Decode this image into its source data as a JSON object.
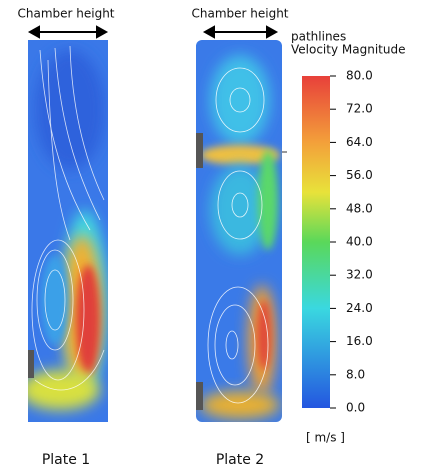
{
  "panels": [
    {
      "header": "Chamber height",
      "caption": "Plate 1"
    },
    {
      "header": "Chamber height",
      "caption": "Plate 2"
    }
  ],
  "legend": {
    "title": "pathlines",
    "quantity": "Velocity Magnitude",
    "unit": "[ m/s ]",
    "ticks": [
      "80.0",
      "72.0",
      "64.0",
      "56.0",
      "48.0",
      "40.0",
      "32.0",
      "24.0",
      "16.0",
      "8.0",
      "0.0"
    ]
  }
}
